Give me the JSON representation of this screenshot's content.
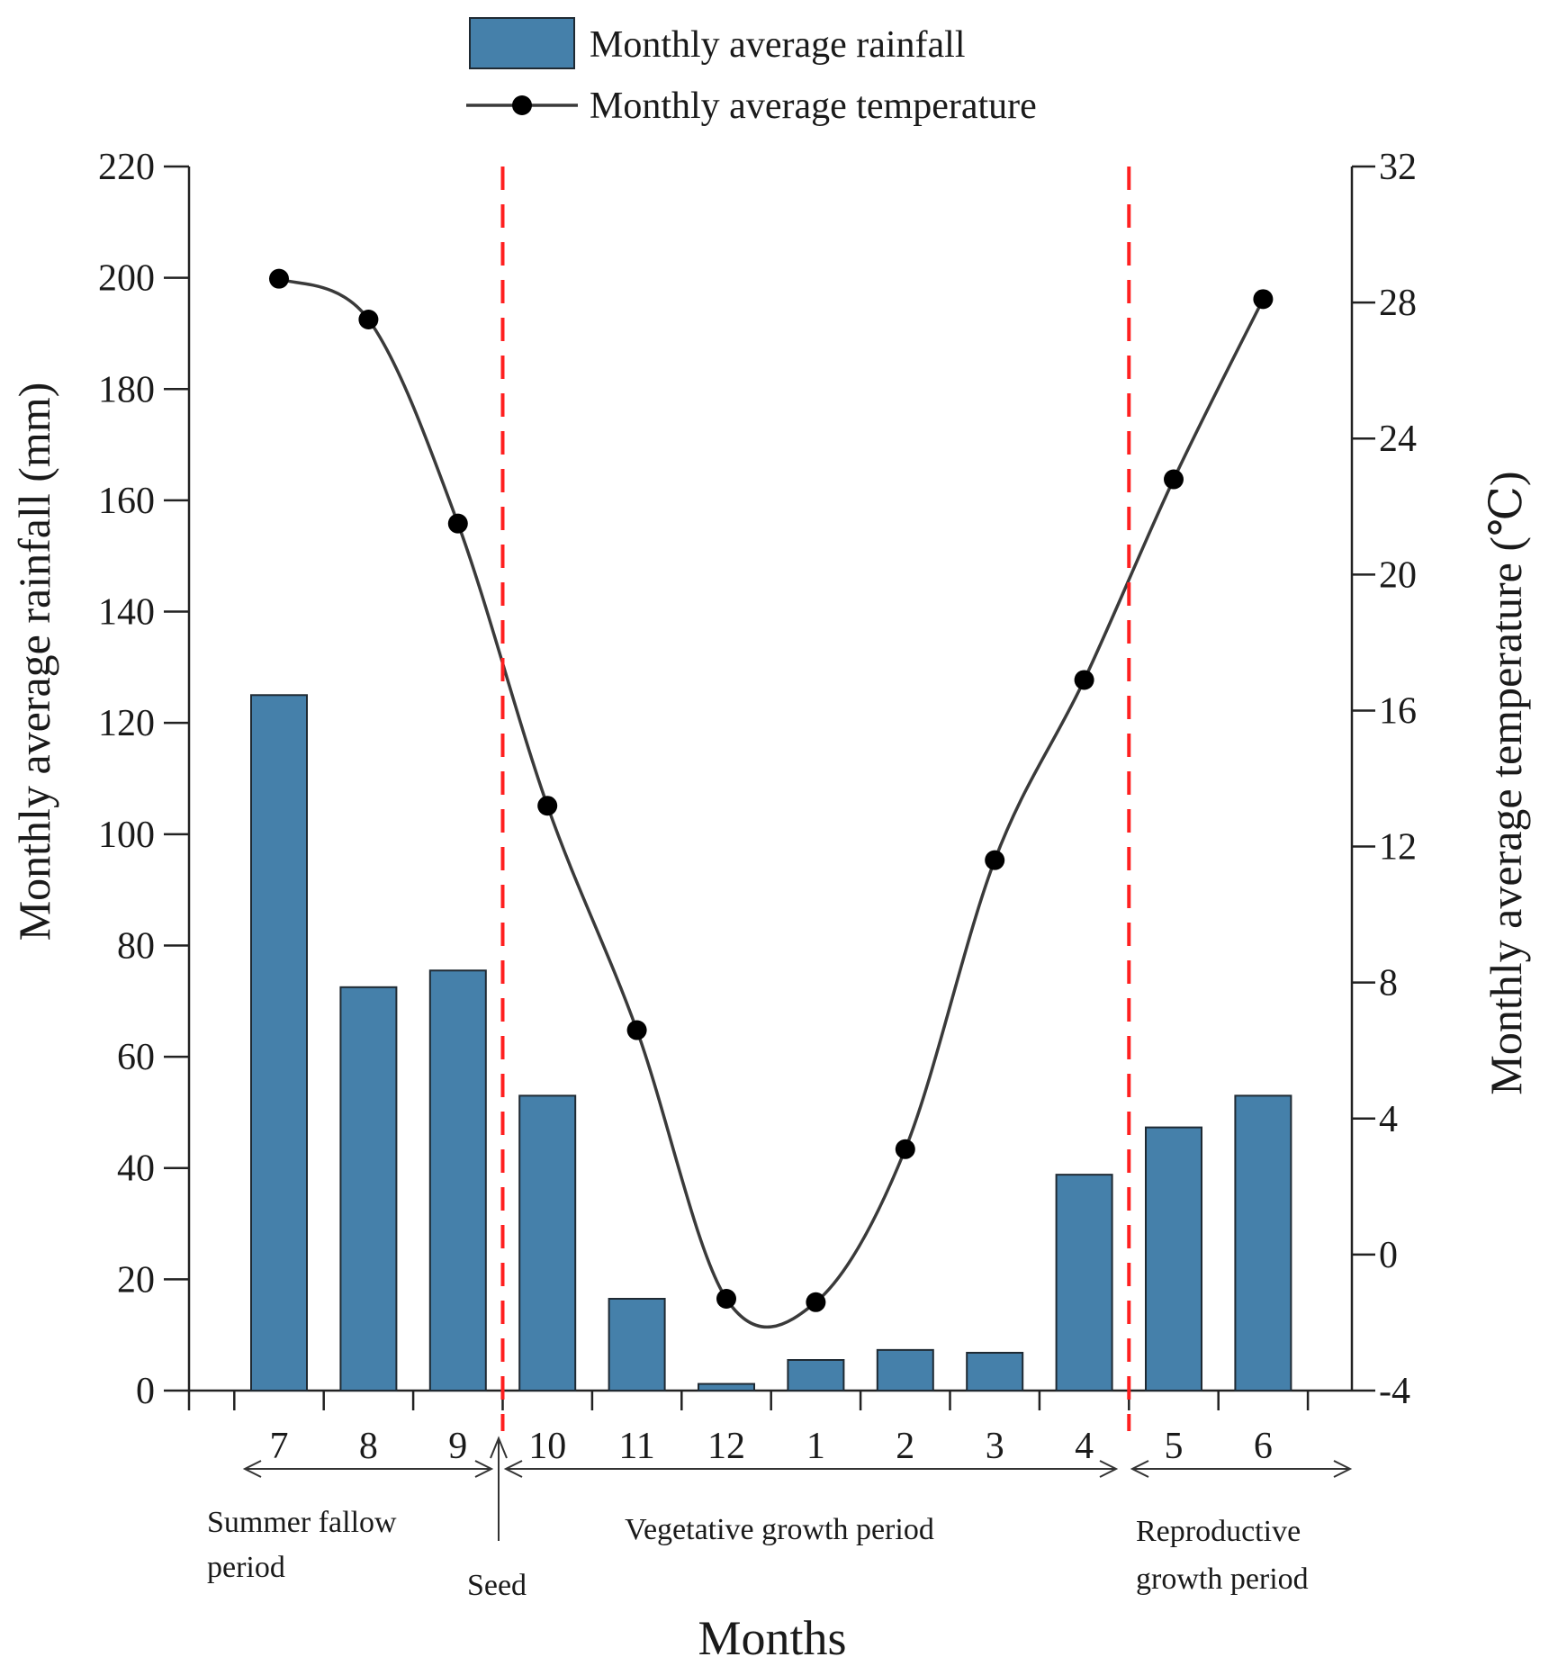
{
  "chart_data": {
    "type": "bar+line",
    "categories": [
      "7",
      "8",
      "9",
      "10",
      "11",
      "12",
      "1",
      "2",
      "3",
      "4",
      "5",
      "6"
    ],
    "series": [
      {
        "name": "Monthly average rainfall",
        "kind": "bar",
        "axis": "left",
        "values": [
          125,
          72.5,
          75.5,
          53,
          16.5,
          1.2,
          5.5,
          7.3,
          6.8,
          38.8,
          47.3,
          53
        ]
      },
      {
        "name": "Monthly average temperature",
        "kind": "line",
        "axis": "right",
        "values": [
          28.7,
          27.5,
          21.5,
          13.2,
          6.6,
          -1.3,
          -1.4,
          3.1,
          11.6,
          16.9,
          22.8,
          28.1
        ]
      }
    ],
    "xlabel": "Months",
    "ylabel_left": "Monthly average rainfall (mm)",
    "ylabel_right": "Monthly average temperature (℃)",
    "ylim_left": [
      0,
      220
    ],
    "yticks_left": [
      0,
      20,
      40,
      60,
      80,
      100,
      120,
      140,
      160,
      180,
      200,
      220
    ],
    "ylim_right": [
      -4,
      32
    ],
    "yticks_right": [
      -4,
      0,
      4,
      8,
      12,
      16,
      20,
      24,
      28,
      32
    ],
    "legend_position": "top-center",
    "colors": {
      "bar": "#4580aa",
      "bar_stroke": "#1f2a33",
      "line": "#3a3a3a",
      "marker": "#000000",
      "divider": "#ff2020",
      "axis": "#222222"
    },
    "dividers": [
      {
        "after_category": "9"
      },
      {
        "after_category": "4"
      }
    ],
    "periods": [
      {
        "label_lines": [
          "Summer fallow",
          "period"
        ],
        "from": "7",
        "to": "9"
      },
      {
        "label_lines": [
          "Vegetative growth period"
        ],
        "from": "10",
        "to": "4"
      },
      {
        "label_lines": [
          "Reproductive",
          "growth period"
        ],
        "from": "5",
        "to": "6"
      }
    ],
    "annotation": "Seed"
  }
}
